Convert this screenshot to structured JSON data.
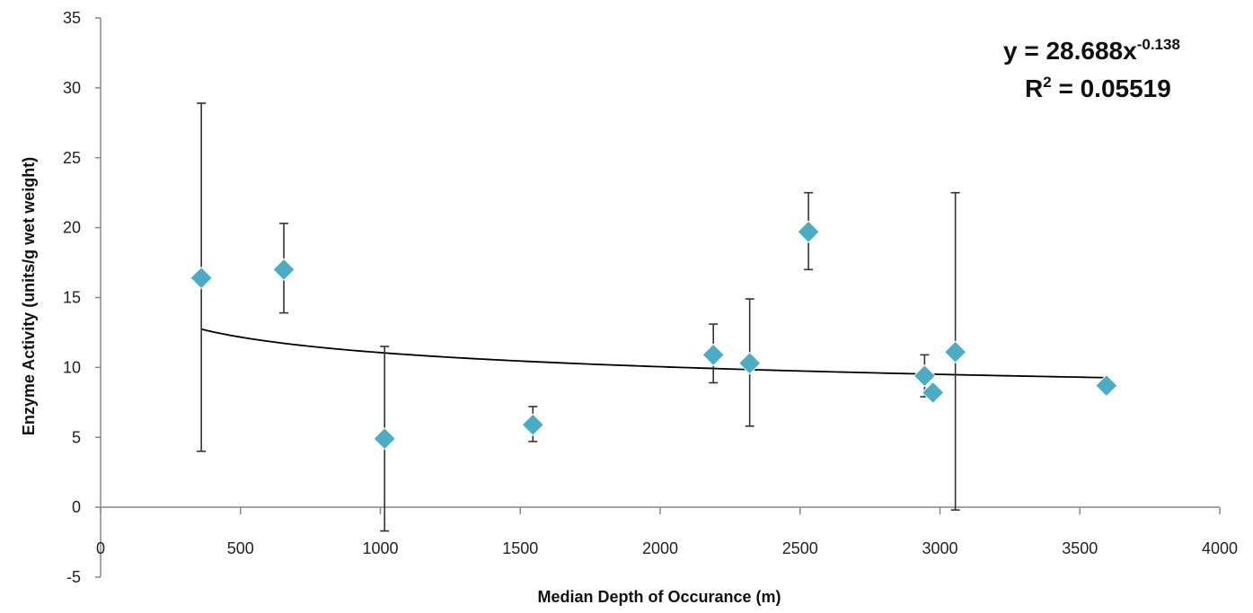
{
  "chart_data": {
    "type": "scatter",
    "title": "",
    "xlabel": "Median Depth of Occurance (m)",
    "ylabel": "Enzyme Activity (units/g wet weight)",
    "xlim": [
      0,
      4000
    ],
    "ylim": [
      -5,
      35
    ],
    "x_ticks": [
      "0",
      "500",
      "1000",
      "1500",
      "2000",
      "2500",
      "3000",
      "3500",
      "4000"
    ],
    "y_ticks": [
      "-5",
      "0",
      "5",
      "10",
      "15",
      "20",
      "25",
      "30",
      "35"
    ],
    "grid": false,
    "legend": "none",
    "marker": "diamond",
    "marker_color": "#4BACC6",
    "series": [
      {
        "points": [
          {
            "x": 360,
            "y": 16.4,
            "y_low": 4.0,
            "y_high": 28.9
          },
          {
            "x": 655,
            "y": 17.0,
            "y_low": 13.9,
            "y_high": 20.3
          },
          {
            "x": 1015,
            "y": 4.9,
            "y_low": -1.7,
            "y_high": 11.5
          },
          {
            "x": 1545,
            "y": 5.9,
            "y_low": 4.7,
            "y_high": 7.2
          },
          {
            "x": 2190,
            "y": 10.9,
            "y_low": 8.9,
            "y_high": 13.1
          },
          {
            "x": 2320,
            "y": 10.3,
            "y_low": 5.8,
            "y_high": 14.9
          },
          {
            "x": 2530,
            "y": 19.7,
            "y_low": 17.0,
            "y_high": 22.5
          },
          {
            "x": 2945,
            "y": 9.4,
            "y_low": 7.9,
            "y_high": 10.9
          },
          {
            "x": 2975,
            "y": 8.2,
            "y_low": 7.9,
            "y_high": 8.4
          },
          {
            "x": 3055,
            "y": 11.1,
            "y_low": -0.2,
            "y_high": 22.5
          },
          {
            "x": 3595,
            "y": 8.7
          }
        ]
      }
    ],
    "trendline": {
      "type": "power",
      "coefficient": 28.688,
      "exponent": -0.138,
      "x_range": [
        360,
        3595
      ],
      "color": "#000000"
    },
    "annotation": {
      "equation_prefix": "y = 28.688x",
      "equation_exponent": "-0.138",
      "r2_prefix": "R",
      "r2_superscript": "2",
      "r2_suffix": " = 0.05519"
    }
  }
}
